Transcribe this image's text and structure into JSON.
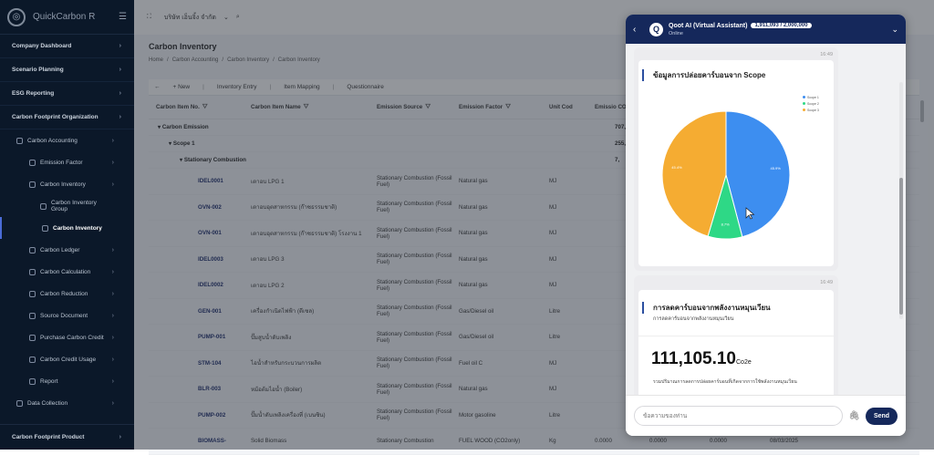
{
  "app": {
    "name": "QuickCarbon R",
    "company": "บริษัท เอ็นจิ้ง จำกัด"
  },
  "sidebar": {
    "sections": [
      {
        "label": "Company Dashboard"
      },
      {
        "label": "Scenario Planning"
      },
      {
        "label": "ESG Reporting"
      },
      {
        "label": "Carbon Footprint Organization"
      }
    ],
    "sub": [
      {
        "label": "Carbon Accounting",
        "level": 1
      },
      {
        "label": "Emission Factor",
        "level": 2
      },
      {
        "label": "Carbon Inventory",
        "level": 2
      },
      {
        "label": "Carbon Inventory Group",
        "level": 3
      },
      {
        "label": "Carbon Inventory",
        "level": 3,
        "active": true
      },
      {
        "label": "Carbon Ledger",
        "level": 2
      },
      {
        "label": "Carbon Calculation",
        "level": 2
      },
      {
        "label": "Carbon Reduction",
        "level": 2
      },
      {
        "label": "Source Document",
        "level": 2
      },
      {
        "label": "Purchase Carbon Credit",
        "level": 2
      },
      {
        "label": "Carbon Credit Usage",
        "level": 2
      },
      {
        "label": "Report",
        "level": 2
      },
      {
        "label": "Data Collection",
        "level": 1
      }
    ],
    "bottom": "Carbon Footprint Product"
  },
  "page": {
    "title": "Carbon Inventory",
    "breadcrumb": [
      "Home",
      "/",
      "Carbon Accounting",
      "/",
      "Carbon Inventory",
      "/",
      "Carbon Inventory"
    ],
    "toolbar": {
      "new": "New",
      "entry": "Inventory Entry",
      "mapping": "Item Mapping",
      "questionnaire": "Questionnaire"
    }
  },
  "table": {
    "headers": [
      "Carbon Item No.",
      "Carbon Item Name",
      "Emission Source",
      "Emission Factor",
      "Unit Cod",
      "Emissio CO2"
    ],
    "groups": [
      {
        "label": "Carbon Emission",
        "value": "707,"
      },
      {
        "label": "Scope 1",
        "value": "255,"
      },
      {
        "label": "Stationary Combustion",
        "value": "7,"
      }
    ],
    "rows": [
      {
        "no": "IDEL0001",
        "name": "เตาอบ LPG 1",
        "source": "Stationary Combustion (Fossil Fuel)",
        "factor": "Natural gas",
        "unit": "MJ"
      },
      {
        "no": "OVN-002",
        "name": "เตาอบอุตสาหกรรม (ก๊าซธรรมชาติ)",
        "source": "Stationary Combustion (Fossil Fuel)",
        "factor": "Natural gas",
        "unit": "MJ"
      },
      {
        "no": "OVN-001",
        "name": "เตาอบอุตสาหกรรม (ก๊าซธรรมชาติ) โรงงาน 1",
        "source": "Stationary Combustion (Fossil Fuel)",
        "factor": "Natural gas",
        "unit": "MJ"
      },
      {
        "no": "IDEL0003",
        "name": "เตาอบ LPG 3",
        "source": "Stationary Combustion (Fossil Fuel)",
        "factor": "Natural gas",
        "unit": "MJ"
      },
      {
        "no": "IDEL0002",
        "name": "เตาอบ LPG 2",
        "source": "Stationary Combustion (Fossil Fuel)",
        "factor": "Natural gas",
        "unit": "MJ"
      },
      {
        "no": "GEN-001",
        "name": "เครื่องกำเนิดไฟฟ้า (ดีเซล)",
        "source": "Stationary Combustion (Fossil Fuel)",
        "factor": "Gas/Diesel oil",
        "unit": "Litre"
      },
      {
        "no": "PUMP-001",
        "name": "ปั๊มสูบน้ำดับเพลิง",
        "source": "Stationary Combustion (Fossil Fuel)",
        "factor": "Gas/Diesel oil",
        "unit": "Litre"
      },
      {
        "no": "STM-104",
        "name": "ไอน้ำสำหรับกระบวนการผลิต",
        "source": "Stationary Combustion (Fossil Fuel)",
        "factor": "Fuel oil C",
        "unit": "MJ"
      },
      {
        "no": "BLR-003",
        "name": "หม้อต้มไอน้ำ (Boiler)",
        "source": "Stationary Combustion (Fossil Fuel)",
        "factor": "Natural gas",
        "unit": "MJ"
      },
      {
        "no": "PUMP-002",
        "name": "ปั๊มน้ำดับเพลิงเครื่องที่ (เบนซิน)",
        "source": "Stationary Combustion (Fossil Fuel)",
        "factor": "Motor gasoline",
        "unit": "Litre"
      },
      {
        "no": "BIOMASS-",
        "name": "Solid Biomass",
        "source": "Stationary Combustion",
        "factor": "FUEL WOOD (CO2only)",
        "unit": "Kg",
        "v1": "0.0000",
        "v2": "0.0000",
        "v3": "0.0000",
        "v4": "08/03/2025"
      }
    ]
  },
  "chat": {
    "title": "Qoot AI (Virtual Assistant)",
    "quota": "1,911,093 / 2,000,000",
    "status": "Online",
    "msg1": {
      "time": "16:49",
      "title": "ข้อมูลการปล่อยคาร์บอนจาก Scope",
      "legend": [
        "Scope 1",
        "Scope 2",
        "Scope 3"
      ]
    },
    "msg2": {
      "time": "16:49",
      "title": "การลดคาร์บอนจากพลังงานหมุนเวียน",
      "subtitle": "การลดคาร์บอนจากพลังงานหมุนเวียน",
      "value": "111,105.10",
      "unit": "Co2e",
      "note": "รวมปริมาณการลดการปล่อยคาร์บอนที่เกิดจากการใช้พลังงานหมุนเวียน"
    },
    "input_placeholder": "ข้อความของท่าน",
    "send": "Send"
  },
  "chart_data": {
    "type": "pie",
    "title": "ข้อมูลการปล่อยคาร์บอนจาก Scope",
    "categories": [
      "Scope 1",
      "Scope 2",
      "Scope 3"
    ],
    "values": [
      45.9,
      8.7,
      45.4
    ],
    "labels": [
      "45.9%",
      "8.7%",
      "45.4%"
    ],
    "colors": [
      "#3d8ef0",
      "#2ed886",
      "#f5ac32"
    ],
    "legend": "top-right"
  }
}
